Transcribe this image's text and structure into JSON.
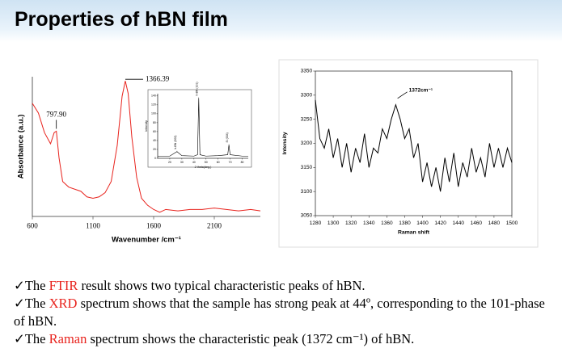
{
  "header": {
    "title": "Properties of hBN film"
  },
  "chart_data": [
    {
      "type": "line",
      "x_label": "Wavenumber /cm⁻¹",
      "y_label": "Absorbance (a.u.)",
      "x": [
        600,
        650,
        700,
        750,
        780,
        797.9,
        820,
        850,
        900,
        1000,
        1050,
        1100,
        1150,
        1200,
        1250,
        1300,
        1340,
        1366.39,
        1390,
        1420,
        1460,
        1500,
        1550,
        1600,
        1650,
        1700,
        1800,
        1900,
        2000,
        2100,
        2200,
        2300,
        2400,
        2480
      ],
      "values": [
        81,
        74,
        60,
        52,
        60,
        61,
        42,
        25,
        21,
        18,
        14,
        13,
        14,
        17,
        25,
        51,
        86,
        97,
        88,
        57,
        28,
        13,
        8,
        5,
        3,
        5,
        4,
        5,
        5,
        6,
        5,
        4,
        5,
        4
      ],
      "color": "#e8231d",
      "xlim": [
        600,
        2480
      ],
      "ylim": [
        0,
        100
      ],
      "xticks": [
        600,
        1100,
        1600,
        2100
      ],
      "annotations": [
        {
          "text": "797.90",
          "x": 797.9,
          "y": 61
        },
        {
          "text": "1366.39",
          "x": 1366.39,
          "y": 97
        }
      ]
    },
    {
      "type": "line",
      "x_label": "2 theta(deg.)",
      "y_label": "Intensity",
      "x": [
        10,
        20,
        26,
        30,
        40,
        43,
        44,
        45,
        50,
        60,
        68,
        69,
        70,
        80,
        85
      ],
      "values": [
        5,
        5,
        15,
        6,
        5,
        8,
        135,
        8,
        5,
        6,
        8,
        30,
        8,
        5,
        5
      ],
      "color": "#000000",
      "xlim": [
        10,
        85
      ],
      "ylim": [
        0,
        145
      ],
      "xticks": [
        20,
        30,
        40,
        50,
        60,
        70,
        80
      ],
      "yticks": [
        0,
        20,
        40,
        60,
        80,
        100,
        120,
        140
      ],
      "annotations": [
        {
          "text": "h-BN (002)",
          "x": 26,
          "y": 15
        },
        {
          "text": "h-BN (101)",
          "x": 44,
          "y": 135
        },
        {
          "text": "Si (004)",
          "x": 69,
          "y": 30
        }
      ]
    },
    {
      "type": "line",
      "x_label": "Raman shift",
      "y_label": "Intensity",
      "x": [
        1280,
        1285,
        1290,
        1295,
        1300,
        1305,
        1310,
        1315,
        1320,
        1325,
        1330,
        1335,
        1340,
        1345,
        1350,
        1355,
        1360,
        1365,
        1370,
        1375,
        1380,
        1385,
        1390,
        1395,
        1400,
        1405,
        1410,
        1415,
        1420,
        1425,
        1430,
        1435,
        1440,
        1445,
        1450,
        1455,
        1460,
        1465,
        1470,
        1475,
        1480,
        1485,
        1490,
        1495,
        1500
      ],
      "values": [
        3290,
        3210,
        3190,
        3230,
        3170,
        3210,
        3150,
        3200,
        3140,
        3190,
        3160,
        3220,
        3150,
        3190,
        3180,
        3230,
        3210,
        3250,
        3280,
        3250,
        3210,
        3230,
        3170,
        3200,
        3120,
        3160,
        3110,
        3150,
        3100,
        3170,
        3120,
        3180,
        3110,
        3160,
        3130,
        3190,
        3140,
        3170,
        3130,
        3200,
        3150,
        3190,
        3150,
        3190,
        3160
      ],
      "color": "#000000",
      "xlim": [
        1280,
        1500
      ],
      "ylim": [
        3050,
        3350
      ],
      "xticks": [
        1280,
        1300,
        1320,
        1340,
        1360,
        1380,
        1400,
        1420,
        1440,
        1460,
        1480,
        1500
      ],
      "yticks": [
        3050,
        3100,
        3150,
        3200,
        3250,
        3300,
        3350
      ],
      "annotations": [
        {
          "text": "1372cm⁻¹",
          "x": 1372,
          "y": 3290
        }
      ]
    }
  ],
  "bullets": [
    {
      "before": "✓The ",
      "highlight": "FTIR",
      "after": " result shows two typical characteristic peaks of hBN."
    },
    {
      "before": "✓The ",
      "highlight": "XRD",
      "after": " spectrum shows that the sample has strong peak at 44º, corresponding to the 101-phase of hBN."
    },
    {
      "before": "✓The ",
      "highlight": "Raman",
      "after": " spectrum shows the characteristic peak (1372 cm⁻¹) of hBN."
    }
  ]
}
